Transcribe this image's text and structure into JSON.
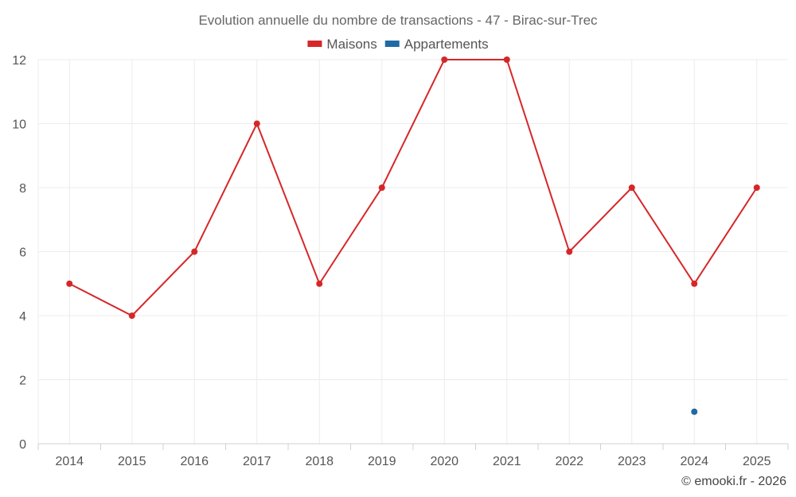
{
  "chart_data": {
    "type": "line",
    "title": "Evolution annuelle du nombre de transactions - 47 - Birac-sur-Trec",
    "categories": [
      "2014",
      "2015",
      "2016",
      "2017",
      "2018",
      "2019",
      "2020",
      "2021",
      "2022",
      "2023",
      "2024",
      "2025"
    ],
    "series": [
      {
        "name": "Maisons",
        "color": "#d62728",
        "values": [
          5,
          4,
          6,
          10,
          5,
          8,
          12,
          12,
          6,
          8,
          5,
          8
        ]
      },
      {
        "name": "Appartements",
        "color": "#1f6aa5",
        "values": [
          null,
          null,
          null,
          null,
          null,
          null,
          null,
          null,
          null,
          null,
          1,
          null
        ]
      }
    ],
    "ylim": [
      0,
      12
    ],
    "yticks": [
      0,
      2,
      4,
      6,
      8,
      10,
      12
    ],
    "grid": true,
    "legend_position": "top-center",
    "xlabel": "",
    "ylabel": ""
  },
  "footer": "© emooki.fr - 2026"
}
